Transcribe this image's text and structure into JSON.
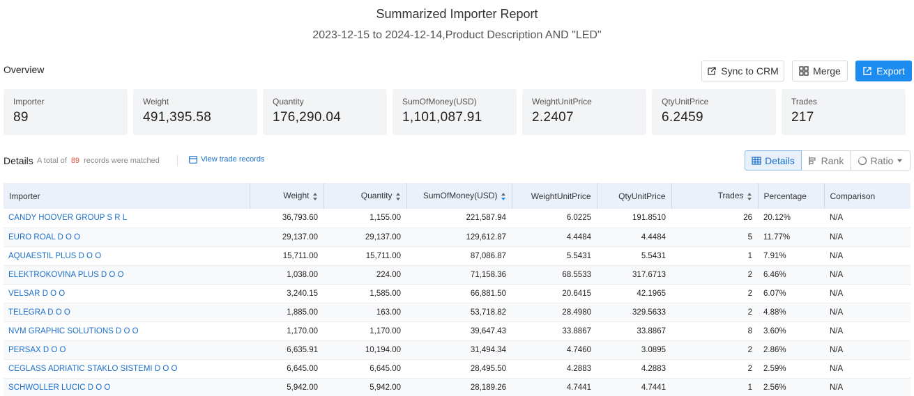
{
  "report": {
    "title": "Summarized Importer Report",
    "subtitle": "2023-12-15 to 2024-12-14,Product Description AND \"LED\""
  },
  "overview": {
    "label": "Overview",
    "buttons": {
      "sync_crm": "Sync to CRM",
      "merge": "Merge",
      "export": "Export"
    },
    "cards": [
      {
        "label": "Importer",
        "value": "89"
      },
      {
        "label": "Weight",
        "value": "491,395.58"
      },
      {
        "label": "Quantity",
        "value": "176,290.04"
      },
      {
        "label": "SumOfMoney(USD)",
        "value": "1,101,087.91"
      },
      {
        "label": "WeightUnitPrice",
        "value": "2.2407"
      },
      {
        "label": "QtyUnitPrice",
        "value": "6.2459"
      },
      {
        "label": "Trades",
        "value": "217"
      }
    ]
  },
  "details": {
    "label": "Details",
    "match_prefix": "A total of",
    "match_count": "89",
    "match_suffix": "records were matched",
    "view_trade": "View trade records",
    "views": {
      "details": "Details",
      "rank": "Rank",
      "ratio": "Ratio"
    }
  },
  "table": {
    "columns": [
      "Importer",
      "Weight",
      "Quantity",
      "SumOfMoney(USD)",
      "WeightUnitPrice",
      "QtyUnitPrice",
      "Trades",
      "Percentage",
      "Comparison"
    ],
    "rows": [
      [
        "CANDY HOOVER GROUP S R L",
        "36,793.60",
        "1,155.00",
        "221,587.94",
        "6.0225",
        "191.8510",
        "26",
        "20.12%",
        "N/A"
      ],
      [
        "EURO ROAL D O O",
        "29,137.00",
        "29,137.00",
        "129,612.87",
        "4.4484",
        "4.4484",
        "5",
        "11.77%",
        "N/A"
      ],
      [
        "AQUAESTIL PLUS D O O",
        "15,711.00",
        "15,711.00",
        "87,086.87",
        "5.5431",
        "5.5431",
        "1",
        "7.91%",
        "N/A"
      ],
      [
        "ELEKTROKOVINA PLUS D O O",
        "1,038.00",
        "224.00",
        "71,158.36",
        "68.5533",
        "317.6713",
        "2",
        "6.46%",
        "N/A"
      ],
      [
        "VELSAR D O O",
        "3,240.15",
        "1,585.00",
        "66,881.50",
        "20.6415",
        "42.1965",
        "2",
        "6.07%",
        "N/A"
      ],
      [
        "TELEGRA D O O",
        "1,885.00",
        "163.00",
        "53,718.82",
        "28.4980",
        "329.5633",
        "2",
        "4.88%",
        "N/A"
      ],
      [
        "NVM GRAPHIC SOLUTIONS D O O",
        "1,170.00",
        "1,170.00",
        "39,647.43",
        "33.8867",
        "33.8867",
        "8",
        "3.60%",
        "N/A"
      ],
      [
        "PERSAX D O O",
        "6,635.91",
        "10,194.00",
        "31,494.34",
        "4.7460",
        "3.0895",
        "2",
        "2.86%",
        "N/A"
      ],
      [
        "CEGLASS ADRIATIC STAKLO SISTEMI D O O",
        "6,645.00",
        "6,645.00",
        "28,495.50",
        "4.2883",
        "4.2883",
        "2",
        "2.59%",
        "N/A"
      ],
      [
        "SCHWOLLER LUCIC D O O",
        "5,942.00",
        "5,942.00",
        "28,189.26",
        "4.7441",
        "4.7441",
        "1",
        "2.56%",
        "N/A"
      ]
    ]
  },
  "colors": {
    "accent": "#1c8cf0",
    "link": "#1c6fc9",
    "count": "#e0533b",
    "header_bg": "#eaf1fb"
  }
}
